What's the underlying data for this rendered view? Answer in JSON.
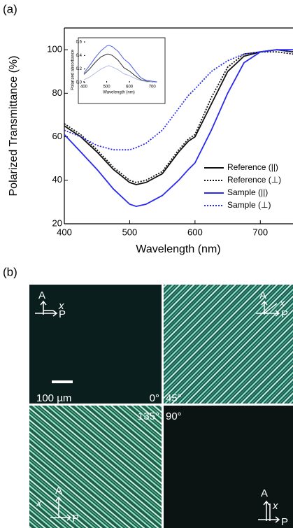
{
  "panel_labels": [
    "(a)",
    "(b)"
  ],
  "chart_data": [
    {
      "type": "line",
      "xlabel": "Wavelength (nm)",
      "ylabel": "Polarized Transmittance (%)",
      "x": [
        400,
        425,
        450,
        475,
        500,
        510,
        525,
        550,
        575,
        590,
        600,
        625,
        650,
        675,
        700,
        725,
        750
      ],
      "xlim": [
        400,
        750
      ],
      "xticks": [
        400,
        500,
        600,
        700
      ],
      "ylim": [
        20,
        110
      ],
      "yticks": [
        20,
        40,
        60,
        80,
        100
      ],
      "legend": "lower right",
      "series": [
        {
          "name": "Reference (||)",
          "color": "#111111",
          "linestyle": "solid",
          "values": [
            65,
            60,
            53,
            45,
            39,
            38,
            39,
            43,
            53,
            58,
            60,
            75,
            90,
            97,
            99,
            100,
            99
          ]
        },
        {
          "name": "Reference (⊥)",
          "color": "#111111",
          "linestyle": "dotted",
          "values": [
            66,
            61,
            54,
            46,
            40,
            39,
            40,
            44,
            54,
            59,
            61,
            78,
            92,
            98,
            99,
            99,
            98
          ]
        },
        {
          "name": "Sample (||)",
          "color": "#2a2aee",
          "linestyle": "solid",
          "values": [
            61,
            53,
            45,
            36,
            29,
            28,
            29,
            33,
            40,
            45,
            48,
            63,
            80,
            94,
            99,
            100,
            100
          ]
        },
        {
          "name": "Sample (⊥)",
          "color": "#2a2aee",
          "linestyle": "dotted",
          "values": [
            63,
            60,
            56,
            54,
            54,
            55,
            57,
            63,
            73,
            79,
            82,
            90,
            95,
            98,
            99,
            100,
            99
          ]
        }
      ]
    },
    {
      "type": "line",
      "xlabel": "Wavelength (nm)",
      "ylabel": "Polarized absorbance",
      "x": [
        400,
        425,
        450,
        475,
        500,
        510,
        525,
        550,
        575,
        600,
        625,
        650,
        675,
        700,
        720
      ],
      "xlim": [
        400,
        750
      ],
      "xticks": [
        400,
        500,
        600,
        700
      ],
      "ylim": [
        0,
        0.6
      ],
      "yticks": [
        {
          "value": 0,
          "label": "0.0"
        },
        0.2,
        0.4,
        0.6
      ],
      "series": [
        {
          "color": "#333333",
          "linestyle": "solid",
          "values": [
            0.12,
            0.2,
            0.3,
            0.38,
            0.42,
            0.42,
            0.4,
            0.33,
            0.22,
            0.17,
            0.1,
            0.04,
            0.02,
            0.01,
            0.01
          ]
        },
        {
          "color": "#4a5ee0",
          "linestyle": "solid",
          "values": [
            0.14,
            0.25,
            0.37,
            0.47,
            0.54,
            0.55,
            0.53,
            0.46,
            0.35,
            0.28,
            0.17,
            0.07,
            0.03,
            0.02,
            0.01
          ]
        },
        {
          "color": "#b4bce4",
          "linestyle": "solid",
          "values": [
            0.04,
            0.08,
            0.14,
            0.2,
            0.24,
            0.25,
            0.23,
            0.19,
            0.13,
            0.1,
            0.06,
            0.03,
            0.01,
            0.01,
            0.0
          ]
        }
      ]
    }
  ],
  "micrographs": {
    "scale_bar": "100 µm",
    "panels": [
      {
        "angle": "0°",
        "A": "A",
        "x": "x",
        "P": "P"
      },
      {
        "angle": "45°",
        "A": "A",
        "x": "x",
        "P": "P"
      },
      {
        "angle": "135°",
        "A": "A",
        "x": "x",
        "P": "P"
      },
      {
        "angle": "90°",
        "A": "A",
        "x": "x",
        "P": "P"
      }
    ]
  }
}
